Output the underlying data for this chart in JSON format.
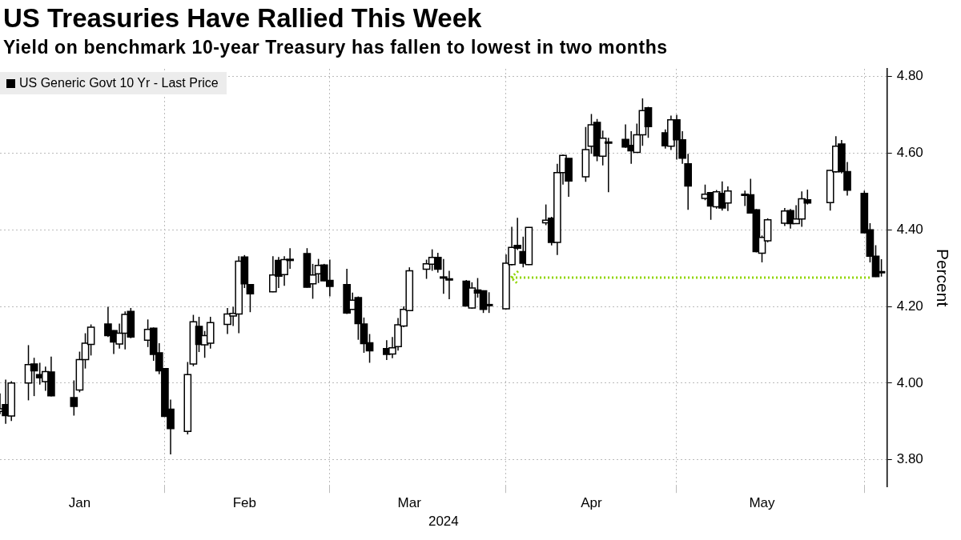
{
  "chart_data": {
    "type": "candlestick",
    "title": "US Treasuries Have Rallied This Week",
    "subtitle": "Yield on benchmark 10-year Treasury has fallen to lowest in two months",
    "xlabel": "2024",
    "ylabel": "Percent",
    "legend": "top left",
    "grid": true,
    "x": [
      "2024-01-03",
      "2024-01-04",
      "2024-01-05",
      "2024-01-08",
      "2024-01-09",
      "2024-01-10",
      "2024-01-11",
      "2024-01-12",
      "2024-01-16",
      "2024-01-17",
      "2024-01-18",
      "2024-01-19",
      "2024-01-22",
      "2024-01-23",
      "2024-01-24",
      "2024-01-25",
      "2024-01-26",
      "2024-01-29",
      "2024-01-30",
      "2024-01-31",
      "2024-02-01",
      "2024-02-02",
      "2024-02-05",
      "2024-02-06",
      "2024-02-07",
      "2024-02-08",
      "2024-02-09",
      "2024-02-12",
      "2024-02-13",
      "2024-02-14",
      "2024-02-15",
      "2024-02-16",
      "2024-02-20",
      "2024-02-21",
      "2024-02-22",
      "2024-02-23",
      "2024-02-26",
      "2024-02-27",
      "2024-02-28",
      "2024-02-29",
      "2024-03-01",
      "2024-03-04",
      "2024-03-05",
      "2024-03-06",
      "2024-03-07",
      "2024-03-08",
      "2024-03-11",
      "2024-03-12",
      "2024-03-13",
      "2024-03-14",
      "2024-03-15",
      "2024-03-18",
      "2024-03-19",
      "2024-03-20",
      "2024-03-21",
      "2024-03-22",
      "2024-03-25",
      "2024-03-26",
      "2024-03-27",
      "2024-03-28",
      "2024-03-29",
      "2024-04-01",
      "2024-04-02",
      "2024-04-03",
      "2024-04-04",
      "2024-04-05",
      "2024-04-08",
      "2024-04-09",
      "2024-04-10",
      "2024-04-11",
      "2024-04-12",
      "2024-04-15",
      "2024-04-16",
      "2024-04-17",
      "2024-04-18",
      "2024-04-19",
      "2024-04-22",
      "2024-04-23",
      "2024-04-24",
      "2024-04-25",
      "2024-04-26",
      "2024-04-29",
      "2024-04-30",
      "2024-05-01",
      "2024-05-02",
      "2024-05-03",
      "2024-05-06",
      "2024-05-07",
      "2024-05-08",
      "2024-05-09",
      "2024-05-10",
      "2024-05-13",
      "2024-05-14",
      "2024-05-15",
      "2024-05-16",
      "2024-05-17",
      "2024-05-20",
      "2024-05-21",
      "2024-05-22",
      "2024-05-23",
      "2024-05-24",
      "2024-05-28",
      "2024-05-29",
      "2024-05-30",
      "2024-05-31",
      "2024-06-03",
      "2024-06-04",
      "2024-06-05",
      "2024-06-06"
    ],
    "series": [
      {
        "name": "US Generic Govt 10 Yr - Last Price",
        "color": "#000000",
        "colors": [
          "#ffffff",
          "#000000",
          "#ffffff",
          "#ffffff",
          "#000000",
          "#000000",
          "#ffffff",
          "#000000",
          "#000000",
          "#ffffff",
          "#ffffff",
          "#ffffff",
          "#000000",
          "#000000",
          "#ffffff",
          "#ffffff",
          "#000000",
          "#ffffff",
          "#000000",
          "#000000",
          "#000000",
          "#000000",
          "#ffffff",
          "#ffffff",
          "#000000",
          "#ffffff",
          "#ffffff",
          "#ffffff",
          "#ffffff",
          "#ffffff",
          "#000000",
          "#000000",
          "#ffffff",
          "#000000",
          "#ffffff",
          "#000000",
          "#000000",
          "#ffffff",
          "#ffffff",
          "#000000",
          "#000000",
          "#000000",
          "#ffffff",
          "#000000",
          "#000000",
          "#000000",
          "#000000",
          "#ffffff",
          "#ffffff",
          "#ffffff",
          "#ffffff",
          "#ffffff",
          "#ffffff",
          "#000000",
          "#000000",
          "#000000",
          "#000000",
          "#ffffff",
          "#000000",
          "#000000",
          "#ffffff",
          "#ffffff",
          "#ffffff",
          "#000000",
          "#000000",
          "#ffffff",
          "#ffffff",
          "#000000",
          "#ffffff",
          "#ffffff",
          "#000000",
          "#ffffff",
          "#ffffff",
          "#000000",
          "#ffffff",
          "#000000",
          "#000000",
          "#000000",
          "#ffffff",
          "#ffffff",
          "#000000",
          "#000000",
          "#ffffff",
          "#000000",
          "#000000",
          "#000000",
          "#ffffff",
          "#000000",
          "#ffffff",
          "#000000",
          "#ffffff",
          "#000000",
          "#000000",
          "#000000",
          "#ffffff",
          "#ffffff",
          "#ffffff",
          "#000000",
          "#ffffff",
          "#ffffff",
          "#000000",
          "#ffffff",
          "#ffffff",
          "#000000",
          "#000000",
          "#000000",
          "#000000",
          "#000000",
          "#000000"
        ],
        "ohlc": [
          [
            3.926,
            3.973,
            3.919,
            3.933
          ],
          [
            3.944,
            4.009,
            3.894,
            3.915
          ],
          [
            3.914,
            4.005,
            3.901,
            4.0
          ],
          [
            4.0,
            4.099,
            3.955,
            4.048
          ],
          [
            4.05,
            4.066,
            3.966,
            4.032
          ],
          [
            4.022,
            4.053,
            3.996,
            4.014
          ],
          [
            4.004,
            4.043,
            3.98,
            4.03
          ],
          [
            4.029,
            4.069,
            3.965,
            3.967
          ],
          [
            3.962,
            4.007,
            3.915,
            3.939
          ],
          [
            3.982,
            4.082,
            3.976,
            4.061
          ],
          [
            4.061,
            4.13,
            4.038,
            4.104
          ],
          [
            4.101,
            4.153,
            4.072,
            4.146
          ],
          [
            4.154,
            4.199,
            4.12,
            4.124
          ],
          [
            4.137,
            4.138,
            4.076,
            4.107
          ],
          [
            4.102,
            4.155,
            4.09,
            4.13
          ],
          [
            4.13,
            4.187,
            4.088,
            4.179
          ],
          [
            4.187,
            4.196,
            4.117,
            4.12
          ],
          [
            4.112,
            4.166,
            4.094,
            4.14
          ],
          [
            4.143,
            4.145,
            4.058,
            4.075
          ],
          [
            4.079,
            4.104,
            4.023,
            4.032
          ],
          [
            4.038,
            4.039,
            3.912,
            3.913
          ],
          [
            3.932,
            3.957,
            3.814,
            3.881
          ],
          [
            3.874,
            4.055,
            3.866,
            4.022
          ],
          [
            4.05,
            4.178,
            4.044,
            4.16
          ],
          [
            4.148,
            4.173,
            4.081,
            4.101
          ],
          [
            4.1,
            4.136,
            4.066,
            4.124
          ],
          [
            4.104,
            4.173,
            4.09,
            4.158
          ],
          [
            4.153,
            4.196,
            4.128,
            4.18
          ],
          [
            4.175,
            4.199,
            4.149,
            4.182
          ],
          [
            4.18,
            4.331,
            4.13,
            4.318
          ],
          [
            4.329,
            4.334,
            4.248,
            4.259
          ],
          [
            4.257,
            4.258,
            4.185,
            4.233
          ],
          [
            4.238,
            4.331,
            4.237,
            4.282
          ],
          [
            4.32,
            4.329,
            4.248,
            4.279
          ],
          [
            4.283,
            4.331,
            4.254,
            4.322
          ],
          [
            4.323,
            4.352,
            4.298,
            4.323
          ],
          [
            4.338,
            4.352,
            4.249,
            4.25
          ],
          [
            4.259,
            4.311,
            4.22,
            4.282
          ],
          [
            4.285,
            4.324,
            4.261,
            4.307
          ],
          [
            4.308,
            4.311,
            4.266,
            4.267
          ],
          [
            4.268,
            4.322,
            4.226,
            4.252
          ],
          [
            4.257,
            4.298,
            4.18,
            4.183
          ],
          [
            4.192,
            4.236,
            4.191,
            4.216
          ],
          [
            4.223,
            4.226,
            4.113,
            4.155
          ],
          [
            4.154,
            4.171,
            4.079,
            4.103
          ],
          [
            4.105,
            4.128,
            4.053,
            4.084
          ],
          [
            4.09,
            4.112,
            4.06,
            4.075
          ],
          [
            4.076,
            4.12,
            4.065,
            4.092
          ],
          [
            4.095,
            4.17,
            4.085,
            4.152
          ],
          [
            4.149,
            4.2,
            4.146,
            4.192
          ],
          [
            4.189,
            4.302,
            4.188,
            4.293
          ],
          [
            4.297,
            4.322,
            4.272,
            4.311
          ],
          [
            4.31,
            4.349,
            4.293,
            4.328
          ],
          [
            4.328,
            4.34,
            4.288,
            4.297
          ],
          [
            4.277,
            4.324,
            4.233,
            4.276
          ],
          [
            4.272,
            4.293,
            4.219,
            4.269
          ],
          [
            4.266,
            4.269,
            4.2,
            4.201
          ],
          [
            4.196,
            4.263,
            4.194,
            4.248
          ],
          [
            4.243,
            4.274,
            4.223,
            4.235
          ],
          [
            4.241,
            4.242,
            4.183,
            4.192
          ],
          [
            4.204,
            4.237,
            4.183,
            4.205
          ],
          [
            4.194,
            4.336,
            4.192,
            4.313
          ],
          [
            4.309,
            4.408,
            4.307,
            4.354
          ],
          [
            4.359,
            4.431,
            4.347,
            4.352
          ],
          [
            4.343,
            4.382,
            4.302,
            4.313
          ],
          [
            4.309,
            4.407,
            4.308,
            4.406
          ],
          [
            4.418,
            4.466,
            4.412,
            4.425
          ],
          [
            4.43,
            4.434,
            4.359,
            4.367
          ],
          [
            4.367,
            4.572,
            4.334,
            4.549
          ],
          [
            4.549,
            4.596,
            4.518,
            4.594
          ],
          [
            4.586,
            4.587,
            4.486,
            4.527
          ],
          [
            4.538,
            4.668,
            4.525,
            4.609
          ],
          [
            4.618,
            4.702,
            4.598,
            4.674
          ],
          [
            4.68,
            4.689,
            4.579,
            4.593
          ],
          [
            4.592,
            4.659,
            4.568,
            4.639
          ],
          [
            4.629,
            4.64,
            4.498,
            4.628
          ],
          [
            4.636,
            4.675,
            4.614,
            4.616
          ],
          [
            4.62,
            4.657,
            4.572,
            4.606
          ],
          [
            4.602,
            4.677,
            4.601,
            4.648
          ],
          [
            4.648,
            4.743,
            4.619,
            4.711
          ],
          [
            4.718,
            4.721,
            4.64,
            4.669
          ],
          [
            4.653,
            4.662,
            4.612,
            4.619
          ],
          [
            4.618,
            4.698,
            4.608,
            4.687
          ],
          [
            4.687,
            4.7,
            4.583,
            4.635
          ],
          [
            4.635,
            4.657,
            4.572,
            4.587
          ],
          [
            4.572,
            4.598,
            4.452,
            4.514
          ],
          [
            4.482,
            4.518,
            4.477,
            4.493
          ],
          [
            4.497,
            4.498,
            4.426,
            4.462
          ],
          [
            4.46,
            4.504,
            4.455,
            4.499
          ],
          [
            4.495,
            4.526,
            4.45,
            4.457
          ],
          [
            4.47,
            4.513,
            4.449,
            4.501
          ],
          [
            4.493,
            4.502,
            4.462,
            4.492
          ],
          [
            4.491,
            4.533,
            4.443,
            4.444
          ],
          [
            4.452,
            4.454,
            4.341,
            4.343
          ],
          [
            4.339,
            4.385,
            4.315,
            4.38
          ],
          [
            4.371,
            4.43,
            4.367,
            4.426
          ],
          [
            4.417,
            4.457,
            4.41,
            4.449
          ],
          [
            4.45,
            4.454,
            4.403,
            4.416
          ],
          [
            4.416,
            4.464,
            4.415,
            4.428
          ],
          [
            4.428,
            4.5,
            4.408,
            4.481
          ],
          [
            4.478,
            4.505,
            4.466,
            4.47
          ],
          [
            4.471,
            4.556,
            4.45,
            4.555
          ],
          [
            4.551,
            4.644,
            4.549,
            4.618
          ],
          [
            4.624,
            4.634,
            4.547,
            4.552
          ],
          [
            4.552,
            4.577,
            4.489,
            4.503
          ],
          [
            4.495,
            4.502,
            4.391,
            4.392
          ],
          [
            4.4,
            4.417,
            4.315,
            4.331
          ],
          [
            4.331,
            4.36,
            4.277,
            4.278
          ],
          [
            4.291,
            4.323,
            4.278,
            4.29
          ]
        ]
      },
      {
        "type": "line",
        "x": [
          "2024-04-02",
          "2024-06-04"
        ],
        "values": [
          4.275,
          4.275
        ],
        "color": "#8fd400",
        "line_style": "dotted"
      }
    ],
    "xlim": [
      "2024-01-03",
      "2024-06-07"
    ],
    "xticks": [
      {
        "value": "2024-01-17",
        "label": "Jan"
      },
      {
        "value": "2024-02-01",
        "label": null
      },
      {
        "value": "2024-02-15",
        "label": "Feb"
      },
      {
        "value": "2024-03-01",
        "label": null
      },
      {
        "value": "2024-03-15",
        "label": "Mar"
      },
      {
        "value": "2024-04-01",
        "label": null
      },
      {
        "value": "2024-04-16",
        "label": "Apr"
      },
      {
        "value": "2024-05-01",
        "label": null
      },
      {
        "value": "2024-05-16",
        "label": "May"
      },
      {
        "value": "2024-06-03",
        "label": null
      }
    ],
    "ylim": [
      3.73,
      4.82
    ],
    "yticks": [
      {
        "value": 3.8,
        "label": "3.80"
      },
      {
        "value": 4.0,
        "label": "4.00"
      },
      {
        "value": 4.2,
        "label": "4.20"
      },
      {
        "value": 4.4,
        "label": "4.40"
      },
      {
        "value": 4.6,
        "label": "4.60"
      },
      {
        "value": 4.8,
        "label": "4.80"
      }
    ]
  }
}
